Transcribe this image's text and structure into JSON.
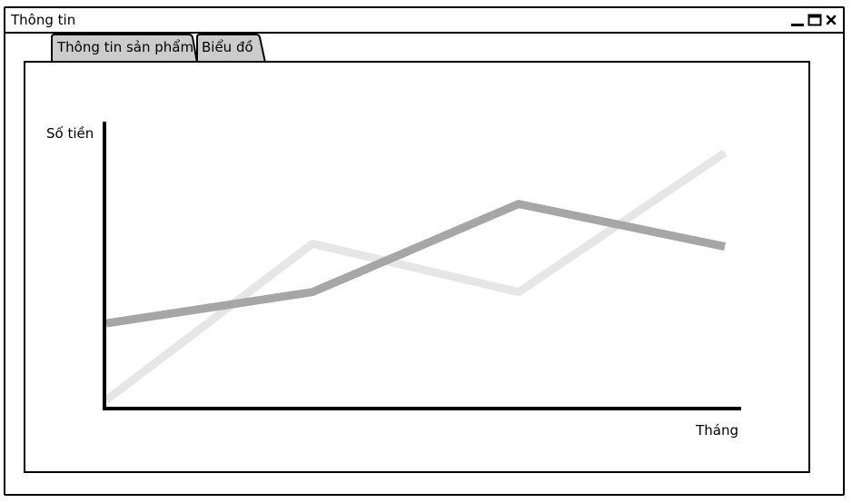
{
  "window": {
    "title": "Thông tin"
  },
  "tabs": [
    {
      "label": "Thông tin sản phẩm",
      "selected": false
    },
    {
      "label": "Biểu đồ",
      "selected": true
    }
  ],
  "colors": {
    "series_dark": "#a6a6a6",
    "series_light": "#e6e6e6",
    "axis": "#000000"
  },
  "chart_data": {
    "type": "line",
    "x": [
      1,
      2,
      3,
      4
    ],
    "ylabel": "Số tiền",
    "xlabel": "Tháng",
    "ylim": [
      0,
      100
    ],
    "grid": false,
    "series": [
      {
        "values": [
          3,
          58,
          41,
          90
        ]
      },
      {
        "values": [
          30,
          41,
          72,
          57
        ]
      }
    ]
  }
}
